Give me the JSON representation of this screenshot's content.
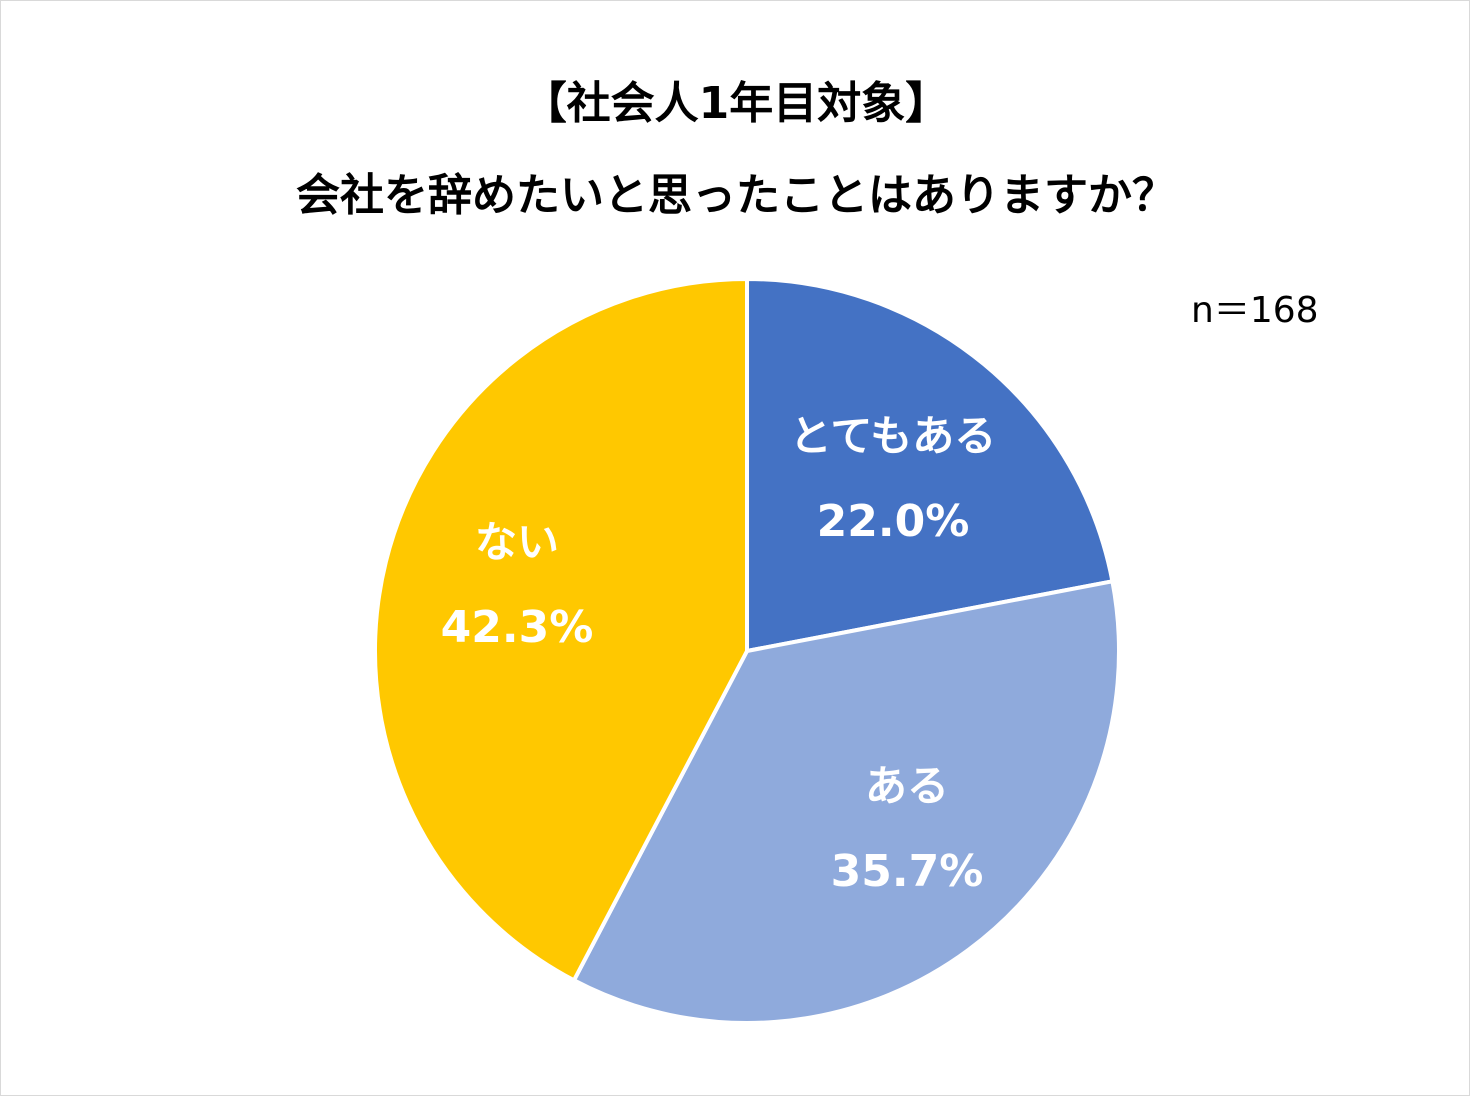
{
  "chart_data": {
    "type": "pie",
    "title": "【社会人1年目対象】",
    "subtitle": "会社を辞めたいと思ったことはありますか？",
    "note": "n＝168",
    "slices": [
      {
        "label": "とてもある",
        "value": 22.0,
        "display": "22.0%",
        "color": "#4472C4"
      },
      {
        "label": "ある",
        "value": 35.7,
        "display": "35.7%",
        "color": "#8FAADC"
      },
      {
        "label": "ない",
        "value": 42.3,
        "display": "42.3%",
        "color": "#FFC800"
      }
    ],
    "start": "12 o'clock",
    "direction": "clockwise",
    "legend": "none"
  }
}
